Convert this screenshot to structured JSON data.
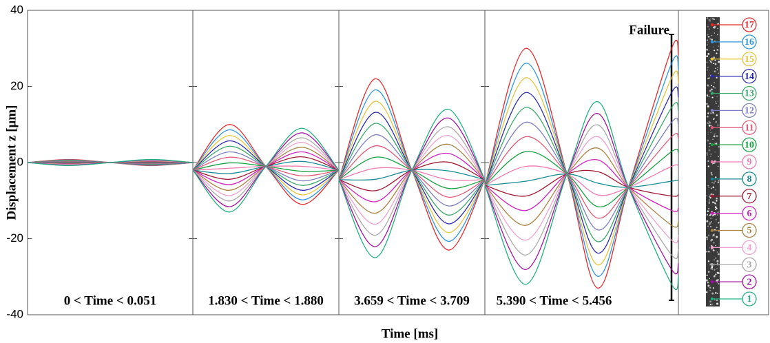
{
  "chart_data": {
    "type": "line",
    "xlabel": "Time [ms]",
    "ylabel": "Displacement z [μm]",
    "annotation": "Failure",
    "ylim": [
      -40,
      40
    ],
    "yticks": [
      -40,
      -20,
      0,
      20,
      40
    ],
    "panels": [
      {
        "label": "0 < Time < 0.051",
        "xlim": [
          0,
          0.051
        ]
      },
      {
        "label": "1.830 < Time < 1.880",
        "xlim": [
          1.83,
          1.88
        ]
      },
      {
        "label": "3.659 < Time < 3.709",
        "xlim": [
          3.659,
          3.709
        ]
      },
      {
        "label": "5.390 < Time < 5.456",
        "xlim": [
          5.39,
          5.456
        ]
      }
    ],
    "x": [
      0,
      0.01275,
      0.0255,
      0.03825,
      0.051,
      1.83,
      1.8425,
      1.855,
      1.8675,
      1.88,
      3.659,
      3.6715,
      3.684,
      3.6965,
      3.709,
      5.39,
      5.404,
      5.418,
      5.4285,
      5.439,
      5.4537,
      5.456
    ],
    "series": [
      {
        "name": "17",
        "color": "#e8272a",
        "values": [
          0,
          0.8,
          0,
          -0.8,
          0,
          -2,
          10,
          -1,
          -11,
          -2,
          -4.5,
          22,
          -2,
          -23,
          -4.5,
          -6,
          30,
          -3,
          -33,
          -6.5,
          30,
          28
        ]
      },
      {
        "name": "16",
        "color": "#2b95e0",
        "values": [
          0,
          0.7,
          0,
          -0.7,
          0,
          -2,
          8.6,
          -1,
          -9.8,
          -2,
          -4.5,
          19.1,
          -2,
          -20.7,
          -4.5,
          -6,
          26.1,
          -3,
          -29.9,
          -6.5,
          26.1,
          24.4
        ]
      },
      {
        "name": "15",
        "color": "#e8c23a",
        "values": [
          0,
          0.6,
          0,
          -0.6,
          0,
          -2,
          7.1,
          -1,
          -8.5,
          -2,
          -4.5,
          16.1,
          -2,
          -18.4,
          -4.5,
          -6,
          22.3,
          -3,
          -26.9,
          -6.5,
          22.3,
          20.8
        ]
      },
      {
        "name": "14",
        "color": "#2a2ab0",
        "values": [
          0,
          0.5,
          0,
          -0.5,
          0,
          -2,
          5.7,
          -1,
          -7.3,
          -2,
          -4.5,
          13.2,
          -2,
          -16.1,
          -4.5,
          -6,
          18.4,
          -3,
          -23.8,
          -6.5,
          18.4,
          17.1
        ]
      },
      {
        "name": "13",
        "color": "#3aa86a",
        "values": [
          0,
          0.4,
          0,
          -0.4,
          0,
          -2,
          4.3,
          -1,
          -6,
          -2,
          -4.5,
          10.3,
          -2,
          -13.8,
          -4.5,
          -6,
          14.5,
          -3,
          -20.8,
          -6.5,
          14.5,
          13.5
        ]
      },
      {
        "name": "12",
        "color": "#7d7dc2",
        "values": [
          0,
          0.3,
          0,
          -0.3,
          0,
          -2,
          2.8,
          -1,
          -4.8,
          -2,
          -4.5,
          7.3,
          -2,
          -11.4,
          -4.5,
          -6,
          10.6,
          -3,
          -17.7,
          -6.5,
          10.6,
          9.9
        ]
      },
      {
        "name": "11",
        "color": "#e05a78",
        "values": [
          0,
          0.2,
          0,
          -0.2,
          0,
          -2,
          1.4,
          -1,
          -3.5,
          -2,
          -4.5,
          4.4,
          -2,
          -9.1,
          -4.5,
          -6,
          6.8,
          -3,
          -14.6,
          -6.5,
          6.8,
          6.3
        ]
      },
      {
        "name": "10",
        "color": "#14a040",
        "values": [
          0,
          0.1,
          0,
          -0.1,
          0,
          -2,
          -0.1,
          -1,
          -2.3,
          -2,
          -4.5,
          1.4,
          -2,
          -6.8,
          -4.5,
          -6,
          2.9,
          -3,
          -11.6,
          -6.5,
          2.9,
          2.6
        ]
      },
      {
        "name": "9",
        "color": "#f07ab0",
        "values": [
          0,
          0,
          0,
          0,
          0,
          -2,
          -1.5,
          -1,
          -1,
          -2,
          -4.5,
          -1.5,
          -2,
          -4.5,
          -4.5,
          -6,
          -1,
          -3,
          -8.5,
          -6.5,
          -1,
          -1
        ]
      },
      {
        "name": "8",
        "color": "#138a92",
        "values": [
          0,
          -0.1,
          0,
          0.1,
          0,
          -2,
          -2.9,
          -1,
          0.3,
          -2,
          -4.5,
          -4.4,
          -2,
          -2.2,
          -4.5,
          -6,
          -4.9,
          -3,
          -5.4,
          -6.5,
          -4.9,
          -4.6
        ]
      },
      {
        "name": "7",
        "color": "#a01830",
        "values": [
          0,
          -0.2,
          0,
          0.2,
          0,
          -2,
          -4.4,
          -1,
          1.5,
          -2,
          -4.5,
          -7.4,
          -2,
          0.1,
          -4.5,
          -6,
          -8.8,
          -3,
          -2.4,
          -6.5,
          -8.8,
          -8.3
        ]
      },
      {
        "name": "6",
        "color": "#d020c0",
        "values": [
          0,
          -0.3,
          0,
          0.3,
          0,
          -2,
          -5.8,
          -1,
          2.8,
          -2,
          -4.5,
          -10.3,
          -2,
          2.4,
          -4.5,
          -6,
          -12.6,
          -3,
          0.7,
          -6.5,
          -12.6,
          -11.9
        ]
      },
      {
        "name": "5",
        "color": "#a88040",
        "values": [
          0,
          -0.4,
          0,
          0.4,
          0,
          -2,
          -7.3,
          -1,
          4,
          -2,
          -4.5,
          -13.3,
          -2,
          4.8,
          -4.5,
          -6,
          -16.5,
          -3,
          3.8,
          -6.5,
          -16.5,
          -15.5
        ]
      },
      {
        "name": "4",
        "color": "#f0a0d0",
        "values": [
          0,
          -0.5,
          0,
          0.5,
          0,
          -2,
          -8.7,
          -1,
          5.3,
          -2,
          -4.5,
          -16.2,
          -2,
          7.1,
          -4.5,
          -6,
          -20.4,
          -3,
          6.8,
          -6.5,
          -20.4,
          -19.1
        ]
      },
      {
        "name": "3",
        "color": "#a8a8a8",
        "values": [
          0,
          -0.6,
          0,
          0.6,
          0,
          -2,
          -10.1,
          -1,
          6.5,
          -2,
          -4.5,
          -19.1,
          -2,
          9.4,
          -4.5,
          -6,
          -24.3,
          -3,
          9.9,
          -6.5,
          -24.3,
          -22.8
        ]
      },
      {
        "name": "2",
        "color": "#a010a0",
        "values": [
          0,
          -0.7,
          0,
          0.7,
          0,
          -2,
          -11.6,
          -1,
          7.8,
          -2,
          -4.5,
          -22.1,
          -2,
          11.7,
          -4.5,
          -6,
          -28.1,
          -3,
          12.9,
          -6.5,
          -28.1,
          -26.4
        ]
      },
      {
        "name": "1",
        "color": "#20b080",
        "values": [
          0,
          -0.8,
          0,
          0.8,
          0,
          -2,
          -13,
          -1,
          9,
          -2,
          -4.5,
          -25,
          -2,
          14,
          -4.5,
          -6,
          -32,
          -3,
          16,
          -6.5,
          -32,
          -30
        ]
      }
    ]
  }
}
